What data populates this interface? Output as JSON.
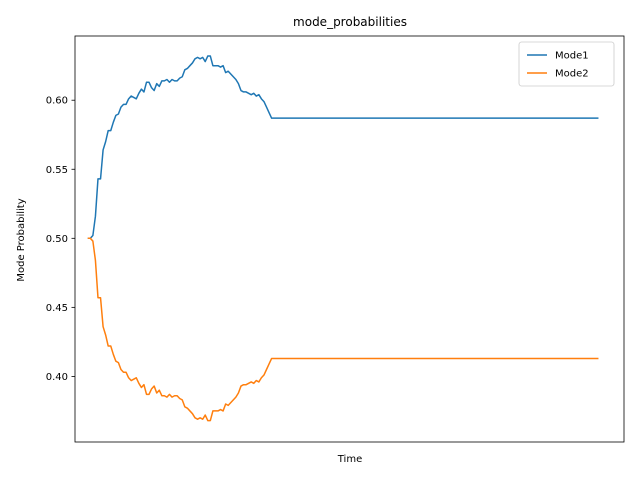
{
  "chart_data": {
    "type": "line",
    "title": "mode_probabilities",
    "xlabel": "Time",
    "ylabel": "Mode Probability",
    "xlim": [
      -5,
      210
    ],
    "ylim": [
      0.3525,
      0.6465
    ],
    "yticks": [
      0.4,
      0.45,
      0.5,
      0.55,
      0.6
    ],
    "ytick_labels": [
      "0.40",
      "0.45",
      "0.50",
      "0.55",
      "0.60"
    ],
    "x_ticks_visible": false,
    "grid": false,
    "legend": "top-right",
    "series": [
      {
        "name": "Mode1",
        "color": "#1f77b4",
        "points": [
          [
            0,
            0.5
          ],
          [
            1,
            0.5
          ],
          [
            2,
            0.502
          ],
          [
            3,
            0.516
          ],
          [
            4,
            0.543
          ],
          [
            5,
            0.543
          ],
          [
            6,
            0.564
          ],
          [
            7,
            0.57
          ],
          [
            8,
            0.578
          ],
          [
            9,
            0.578
          ],
          [
            10,
            0.584
          ],
          [
            11,
            0.589
          ],
          [
            12,
            0.59
          ],
          [
            13,
            0.595
          ],
          [
            14,
            0.597
          ],
          [
            15,
            0.597
          ],
          [
            16,
            0.601
          ],
          [
            17,
            0.603
          ],
          [
            18,
            0.602
          ],
          [
            19,
            0.601
          ],
          [
            20,
            0.605
          ],
          [
            21,
            0.608
          ],
          [
            22,
            0.606
          ],
          [
            23,
            0.613
          ],
          [
            24,
            0.613
          ],
          [
            25,
            0.609
          ],
          [
            26,
            0.607
          ],
          [
            27,
            0.612
          ],
          [
            28,
            0.61
          ],
          [
            29,
            0.614
          ],
          [
            30,
            0.614
          ],
          [
            31,
            0.615
          ],
          [
            32,
            0.613
          ],
          [
            33,
            0.615
          ],
          [
            34,
            0.614
          ],
          [
            35,
            0.614
          ],
          [
            36,
            0.616
          ],
          [
            37,
            0.617
          ],
          [
            38,
            0.622
          ],
          [
            39,
            0.623
          ],
          [
            40,
            0.625
          ],
          [
            41,
            0.627
          ],
          [
            42,
            0.63
          ],
          [
            43,
            0.631
          ],
          [
            44,
            0.63
          ],
          [
            45,
            0.631
          ],
          [
            46,
            0.628
          ],
          [
            47,
            0.632
          ],
          [
            48,
            0.632
          ],
          [
            49,
            0.625
          ],
          [
            50,
            0.625
          ],
          [
            51,
            0.625
          ],
          [
            52,
            0.624
          ],
          [
            53,
            0.625
          ],
          [
            54,
            0.62
          ],
          [
            55,
            0.621
          ],
          [
            56,
            0.619
          ],
          [
            57,
            0.617
          ],
          [
            58,
            0.615
          ],
          [
            59,
            0.612
          ],
          [
            60,
            0.607
          ],
          [
            61,
            0.606
          ],
          [
            62,
            0.606
          ],
          [
            63,
            0.605
          ],
          [
            64,
            0.604
          ],
          [
            65,
            0.605
          ],
          [
            66,
            0.603
          ],
          [
            67,
            0.604
          ],
          [
            68,
            0.601
          ],
          [
            69,
            0.599
          ],
          [
            70,
            0.595
          ],
          [
            71,
            0.591
          ],
          [
            72,
            0.587
          ],
          [
            73,
            0.587
          ],
          [
            80,
            0.587
          ],
          [
            100,
            0.587
          ],
          [
            120,
            0.587
          ],
          [
            140,
            0.587
          ],
          [
            160,
            0.587
          ],
          [
            180,
            0.587
          ],
          [
            200,
            0.587
          ]
        ]
      },
      {
        "name": "Mode2",
        "color": "#ff7f0e",
        "points": [
          [
            0,
            0.5
          ],
          [
            1,
            0.5
          ],
          [
            2,
            0.498
          ],
          [
            3,
            0.484
          ],
          [
            4,
            0.457
          ],
          [
            5,
            0.457
          ],
          [
            6,
            0.436
          ],
          [
            7,
            0.43
          ],
          [
            8,
            0.422
          ],
          [
            9,
            0.422
          ],
          [
            10,
            0.416
          ],
          [
            11,
            0.411
          ],
          [
            12,
            0.41
          ],
          [
            13,
            0.405
          ],
          [
            14,
            0.403
          ],
          [
            15,
            0.403
          ],
          [
            16,
            0.399
          ],
          [
            17,
            0.397
          ],
          [
            18,
            0.398
          ],
          [
            19,
            0.399
          ],
          [
            20,
            0.395
          ],
          [
            21,
            0.392
          ],
          [
            22,
            0.394
          ],
          [
            23,
            0.387
          ],
          [
            24,
            0.387
          ],
          [
            25,
            0.391
          ],
          [
            26,
            0.393
          ],
          [
            27,
            0.388
          ],
          [
            28,
            0.39
          ],
          [
            29,
            0.386
          ],
          [
            30,
            0.386
          ],
          [
            31,
            0.385
          ],
          [
            32,
            0.387
          ],
          [
            33,
            0.385
          ],
          [
            34,
            0.386
          ],
          [
            35,
            0.386
          ],
          [
            36,
            0.384
          ],
          [
            37,
            0.383
          ],
          [
            38,
            0.378
          ],
          [
            39,
            0.377
          ],
          [
            40,
            0.375
          ],
          [
            41,
            0.373
          ],
          [
            42,
            0.37
          ],
          [
            43,
            0.369
          ],
          [
            44,
            0.37
          ],
          [
            45,
            0.369
          ],
          [
            46,
            0.372
          ],
          [
            47,
            0.368
          ],
          [
            48,
            0.368
          ],
          [
            49,
            0.375
          ],
          [
            50,
            0.375
          ],
          [
            51,
            0.375
          ],
          [
            52,
            0.376
          ],
          [
            53,
            0.375
          ],
          [
            54,
            0.38
          ],
          [
            55,
            0.379
          ],
          [
            56,
            0.381
          ],
          [
            57,
            0.383
          ],
          [
            58,
            0.385
          ],
          [
            59,
            0.388
          ],
          [
            60,
            0.393
          ],
          [
            61,
            0.394
          ],
          [
            62,
            0.394
          ],
          [
            63,
            0.395
          ],
          [
            64,
            0.396
          ],
          [
            65,
            0.395
          ],
          [
            66,
            0.397
          ],
          [
            67,
            0.396
          ],
          [
            68,
            0.399
          ],
          [
            69,
            0.401
          ],
          [
            70,
            0.405
          ],
          [
            71,
            0.409
          ],
          [
            72,
            0.413
          ],
          [
            73,
            0.413
          ],
          [
            80,
            0.413
          ],
          [
            100,
            0.413
          ],
          [
            120,
            0.413
          ],
          [
            140,
            0.413
          ],
          [
            160,
            0.413
          ],
          [
            180,
            0.413
          ],
          [
            200,
            0.413
          ]
        ]
      }
    ]
  }
}
